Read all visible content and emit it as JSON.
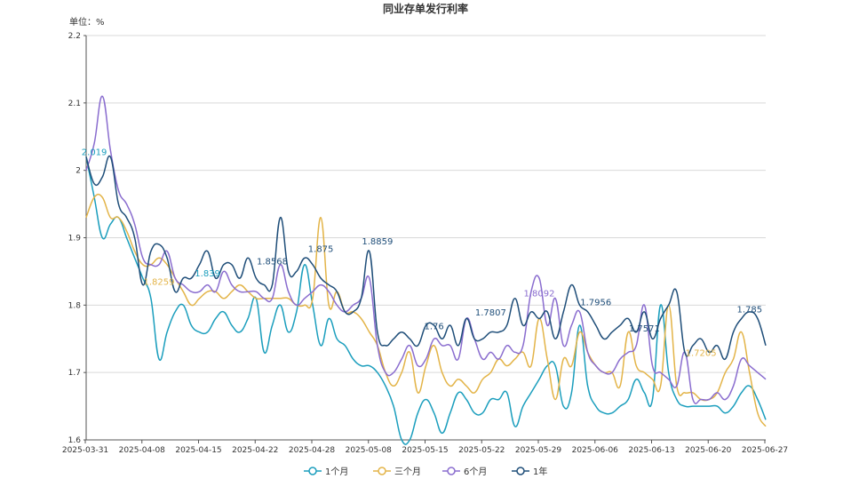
{
  "chart_data": {
    "type": "line",
    "title": "同业存单发行利率",
    "unit_label": "单位：%",
    "ylim": [
      1.6,
      2.2
    ],
    "yticks": [
      "1.6",
      "1.7",
      "1.8",
      "1.9",
      "2",
      "2.1",
      "2.2"
    ],
    "x_ticks": [
      "2025-03-31",
      "2025-04-08",
      "2025-04-15",
      "2025-04-22",
      "2025-04-28",
      "2025-05-08",
      "2025-05-15",
      "2025-05-22",
      "2025-05-29",
      "2025-06-06",
      "2025-06-13",
      "2025-06-20",
      "2025-06-27"
    ],
    "grid": "horizontal",
    "legend_position": "bottom",
    "series": [
      {
        "name": "1个月",
        "color": "#1b9ebd",
        "values": [
          2.02,
          1.96,
          1.9,
          1.92,
          1.93,
          1.9,
          1.87,
          1.84,
          1.81,
          1.72,
          1.76,
          1.79,
          1.8,
          1.77,
          1.76,
          1.76,
          1.78,
          1.79,
          1.77,
          1.76,
          1.78,
          1.81,
          1.73,
          1.77,
          1.8,
          1.76,
          1.79,
          1.86,
          1.8,
          1.74,
          1.78,
          1.75,
          1.74,
          1.72,
          1.71,
          1.71,
          1.7,
          1.68,
          1.65,
          1.6,
          1.6,
          1.64,
          1.66,
          1.64,
          1.61,
          1.64,
          1.67,
          1.66,
          1.64,
          1.64,
          1.66,
          1.66,
          1.67,
          1.62,
          1.65,
          1.67,
          1.69,
          1.71,
          1.71,
          1.65,
          1.67,
          1.77,
          1.68,
          1.65,
          1.64,
          1.64,
          1.65,
          1.66,
          1.69,
          1.67,
          1.66,
          1.8,
          1.7,
          1.66,
          1.65,
          1.65,
          1.65,
          1.65,
          1.65,
          1.64,
          1.65,
          1.67,
          1.68,
          1.66,
          1.63
        ]
      },
      {
        "name": "三个月",
        "color": "#e3b448",
        "values": [
          1.93,
          1.96,
          1.96,
          1.93,
          1.93,
          1.91,
          1.88,
          1.86,
          1.86,
          1.87,
          1.86,
          1.84,
          1.82,
          1.8,
          1.81,
          1.82,
          1.82,
          1.81,
          1.82,
          1.83,
          1.82,
          1.81,
          1.81,
          1.81,
          1.81,
          1.81,
          1.8,
          1.8,
          1.81,
          1.93,
          1.8,
          1.82,
          1.79,
          1.79,
          1.78,
          1.76,
          1.74,
          1.7,
          1.68,
          1.7,
          1.73,
          1.67,
          1.71,
          1.74,
          1.7,
          1.68,
          1.69,
          1.68,
          1.67,
          1.69,
          1.7,
          1.72,
          1.71,
          1.72,
          1.73,
          1.71,
          1.78,
          1.72,
          1.66,
          1.72,
          1.71,
          1.76,
          1.73,
          1.71,
          1.7,
          1.7,
          1.68,
          1.76,
          1.71,
          1.7,
          1.69,
          1.68,
          1.8,
          1.68,
          1.67,
          1.67,
          1.66,
          1.66,
          1.67,
          1.7,
          1.72,
          1.76,
          1.7,
          1.64,
          1.62
        ]
      },
      {
        "name": "6个月",
        "color": "#8a6dcf",
        "values": [
          2.0,
          2.04,
          2.11,
          2.03,
          1.97,
          1.95,
          1.92,
          1.87,
          1.86,
          1.86,
          1.88,
          1.84,
          1.83,
          1.82,
          1.82,
          1.83,
          1.82,
          1.85,
          1.83,
          1.82,
          1.82,
          1.82,
          1.81,
          1.81,
          1.86,
          1.82,
          1.8,
          1.81,
          1.82,
          1.83,
          1.82,
          1.8,
          1.79,
          1.8,
          1.81,
          1.84,
          1.74,
          1.7,
          1.7,
          1.72,
          1.74,
          1.71,
          1.72,
          1.75,
          1.74,
          1.74,
          1.72,
          1.78,
          1.75,
          1.72,
          1.73,
          1.72,
          1.74,
          1.73,
          1.74,
          1.82,
          1.84,
          1.77,
          1.81,
          1.74,
          1.77,
          1.79,
          1.73,
          1.71,
          1.7,
          1.7,
          1.72,
          1.73,
          1.74,
          1.8,
          1.71,
          1.7,
          1.69,
          1.68,
          1.73,
          1.66,
          1.66,
          1.66,
          1.67,
          1.66,
          1.68,
          1.72,
          1.71,
          1.7,
          1.69
        ]
      },
      {
        "name": "1年",
        "color": "#1f4e79",
        "values": [
          2.02,
          1.98,
          1.99,
          2.02,
          1.95,
          1.93,
          1.9,
          1.83,
          1.88,
          1.89,
          1.87,
          1.82,
          1.84,
          1.84,
          1.86,
          1.88,
          1.84,
          1.86,
          1.86,
          1.84,
          1.87,
          1.84,
          1.83,
          1.83,
          1.93,
          1.85,
          1.85,
          1.87,
          1.86,
          1.84,
          1.83,
          1.82,
          1.79,
          1.79,
          1.81,
          1.88,
          1.76,
          1.74,
          1.75,
          1.76,
          1.75,
          1.74,
          1.77,
          1.77,
          1.75,
          1.77,
          1.74,
          1.78,
          1.75,
          1.75,
          1.76,
          1.76,
          1.77,
          1.81,
          1.77,
          1.79,
          1.78,
          1.79,
          1.75,
          1.79,
          1.83,
          1.8,
          1.79,
          1.77,
          1.75,
          1.76,
          1.77,
          1.78,
          1.76,
          1.79,
          1.75,
          1.78,
          1.8,
          1.82,
          1.73,
          1.74,
          1.75,
          1.73,
          1.74,
          1.72,
          1.76,
          1.78,
          1.79,
          1.78,
          1.74
        ]
      }
    ],
    "annotations": [
      {
        "text": "2.019",
        "x": 1,
        "y": 2.019,
        "series": 0
      },
      {
        "text": "1.8259",
        "x": 9,
        "y": 1.8259,
        "series": 1
      },
      {
        "text": "1.839",
        "x": 15,
        "y": 1.839,
        "series": 0
      },
      {
        "text": "1.8568",
        "x": 23,
        "y": 1.8568,
        "series": 3
      },
      {
        "text": "1.875",
        "x": 29,
        "y": 1.875,
        "series": 3
      },
      {
        "text": "1.8859",
        "x": 36,
        "y": 1.8859,
        "series": 3
      },
      {
        "text": "1.76",
        "x": 43,
        "y": 1.76,
        "series": 3
      },
      {
        "text": "1.7807",
        "x": 50,
        "y": 1.7807,
        "series": 3
      },
      {
        "text": "1.8092",
        "x": 56,
        "y": 1.8092,
        "series": 2
      },
      {
        "text": "1.7956",
        "x": 63,
        "y": 1.7956,
        "series": 3
      },
      {
        "text": "1.7571",
        "x": 69,
        "y": 1.7571,
        "series": 3
      },
      {
        "text": "1.7205",
        "x": 76,
        "y": 1.7205,
        "series": 1
      },
      {
        "text": "1.785",
        "x": 82,
        "y": 1.785,
        "series": 3
      }
    ]
  }
}
